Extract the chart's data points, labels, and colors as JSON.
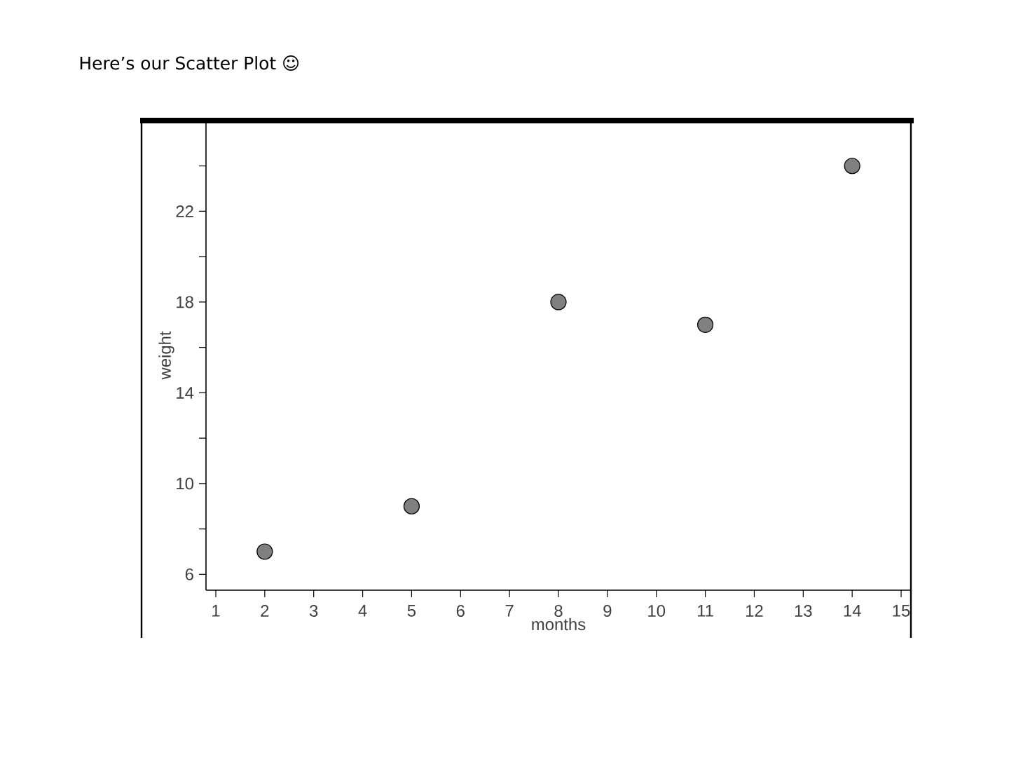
{
  "chart_data": {
    "type": "scatter",
    "title": "Here’s our Scatter Plot ☺",
    "xlabel": "months",
    "ylabel": "weight",
    "x": [
      2,
      5,
      8,
      11,
      14
    ],
    "values": [
      7,
      9,
      18,
      17,
      24
    ],
    "color": "#808080",
    "marker": "circle",
    "xlim": [
      0.8,
      15.2
    ],
    "ylim": [
      5.3,
      26
    ],
    "xticks": [
      1,
      2,
      3,
      4,
      5,
      6,
      7,
      8,
      9,
      10,
      11,
      12,
      13,
      14,
      15
    ],
    "yticks": [
      6,
      {
        "value": 8,
        "label": null
      },
      10,
      {
        "value": 12,
        "label": null
      },
      14,
      {
        "value": 16,
        "label": null
      },
      18,
      {
        "value": 20,
        "label": null
      },
      22,
      {
        "value": 24,
        "label": null
      }
    ],
    "grid": false
  }
}
